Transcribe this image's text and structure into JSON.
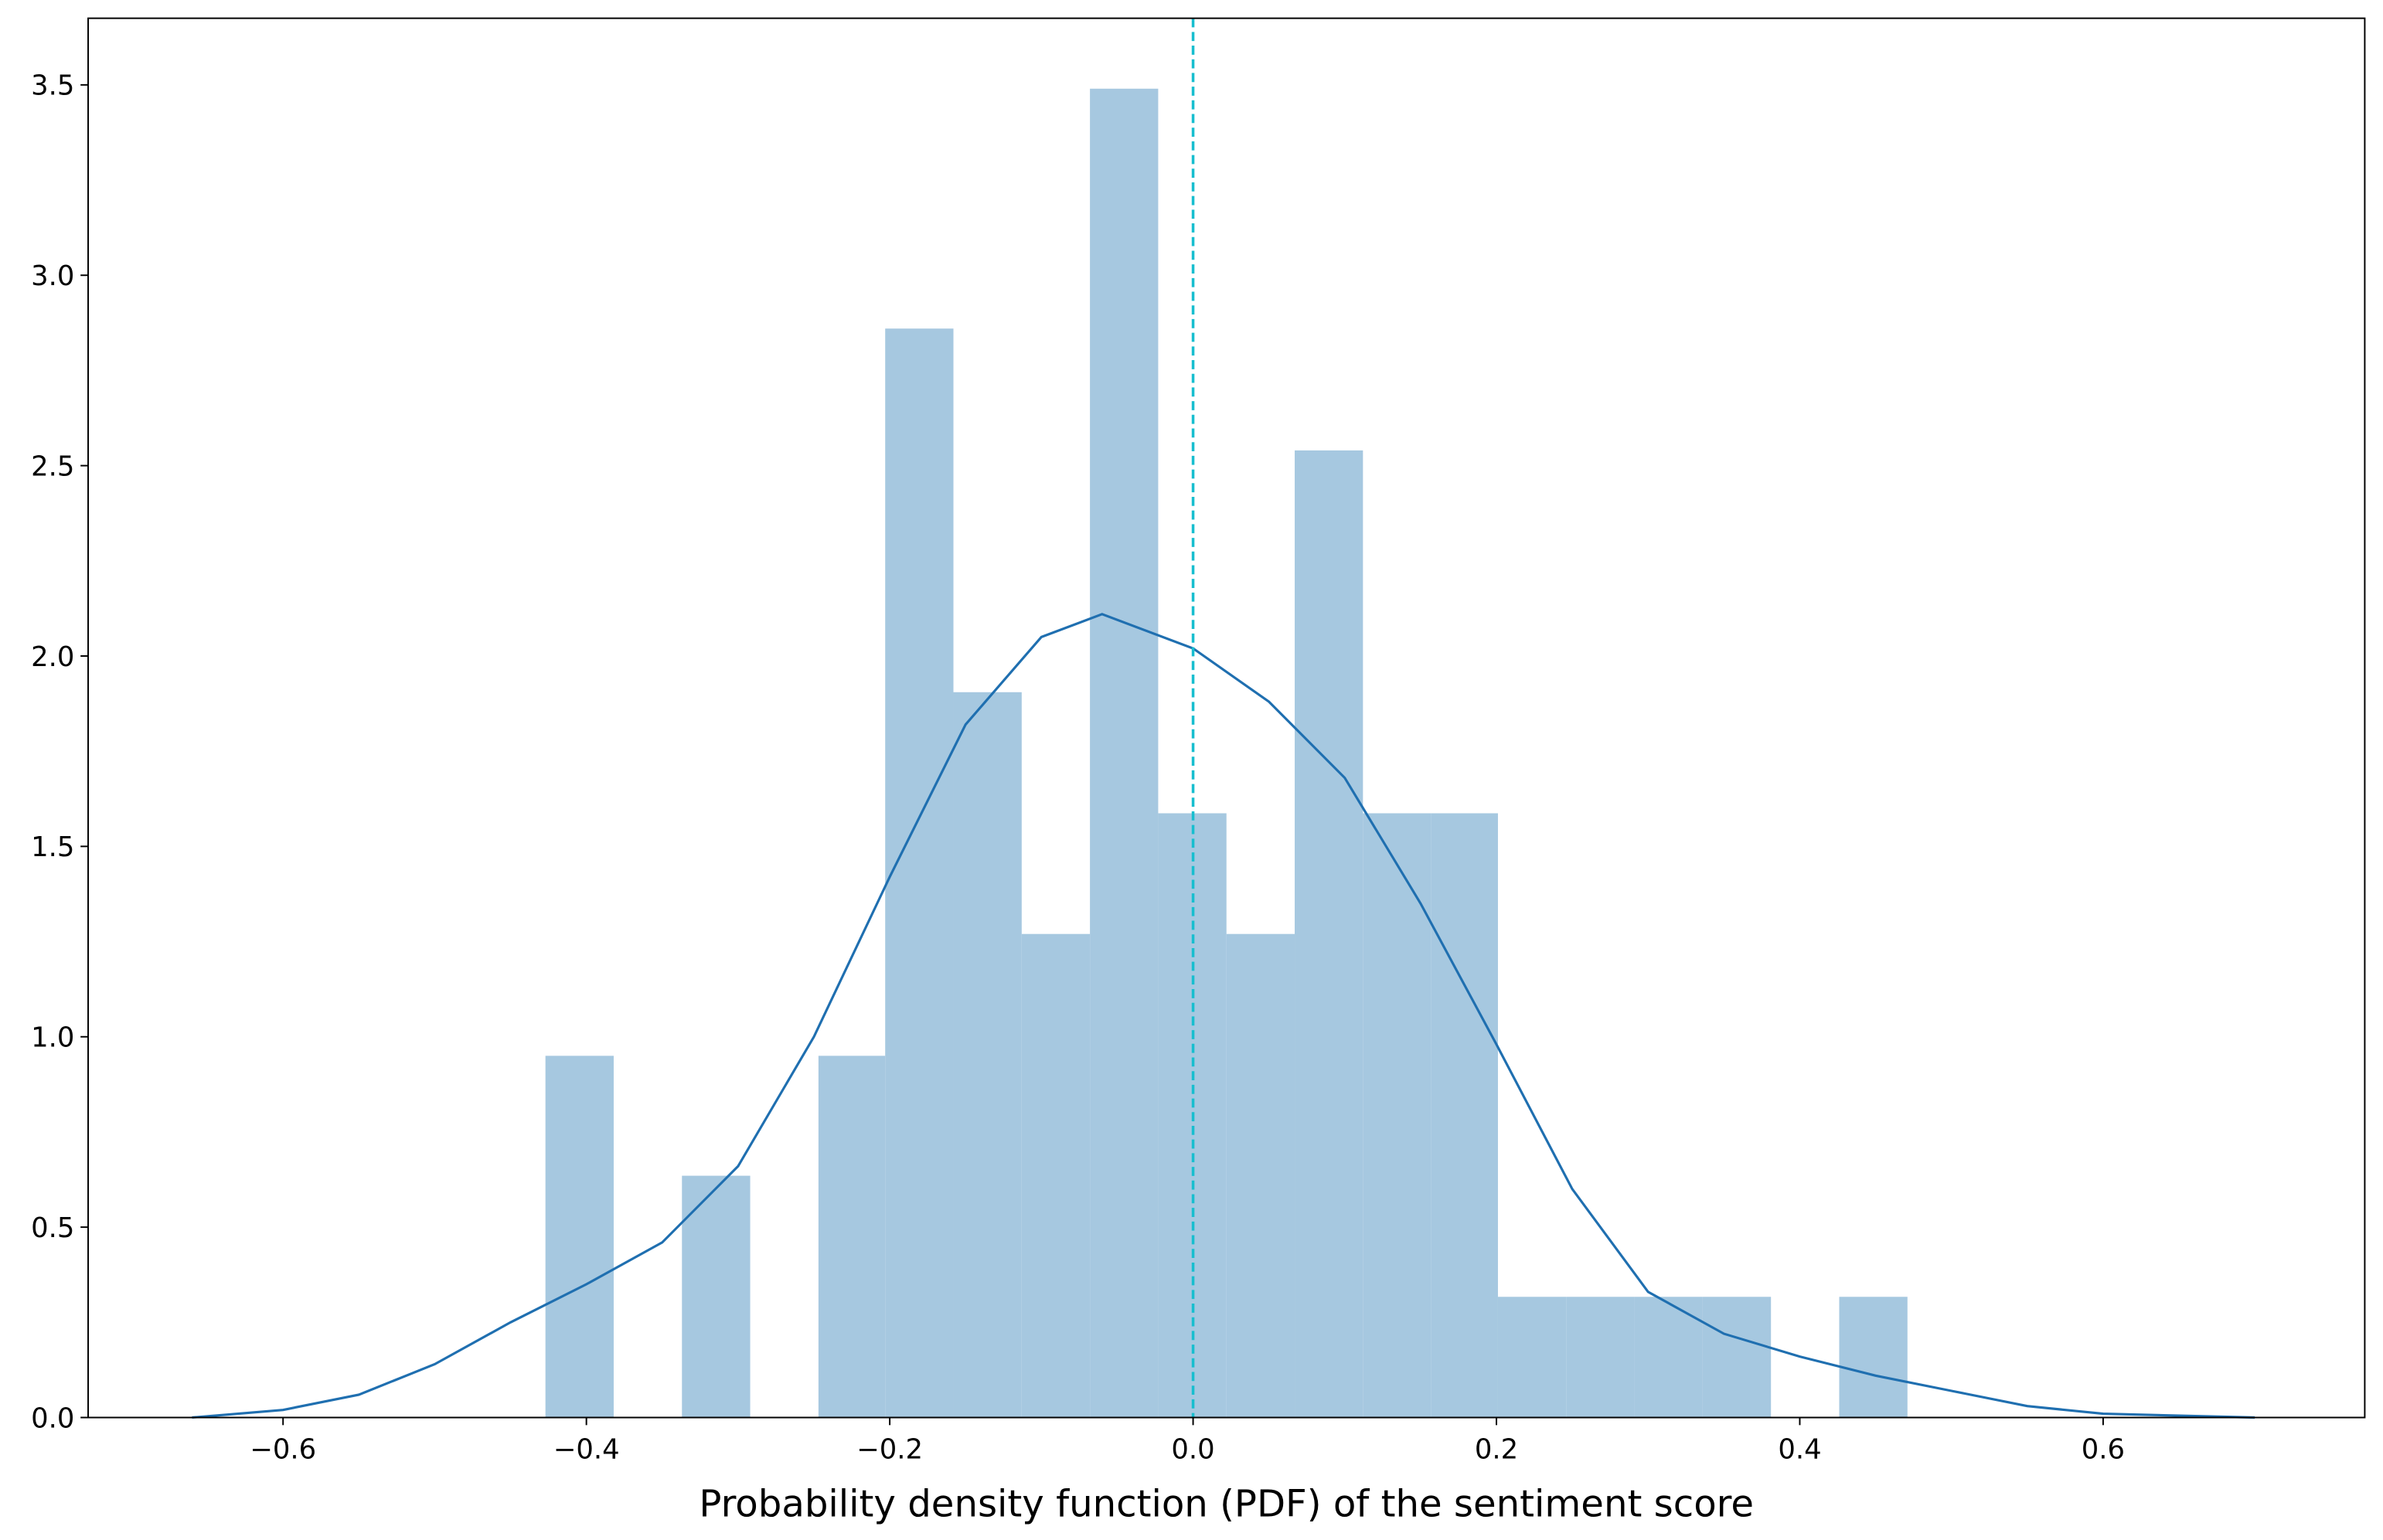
{
  "chart_data": {
    "type": "histogram",
    "xlabel": "Probability density function (PDF) of the sentiment score",
    "bins": [
      -0.427,
      -0.382,
      -0.337,
      -0.292,
      -0.247,
      -0.203,
      -0.158,
      -0.113,
      -0.068,
      -0.023,
      0.022,
      0.067,
      0.112,
      0.157,
      0.201,
      0.246,
      0.291,
      0.336,
      0.381,
      0.426,
      0.471
    ],
    "values": [
      0.95,
      0,
      0.635,
      0,
      0.95,
      2.86,
      1.905,
      1.27,
      3.49,
      1.587,
      1.27,
      2.54,
      1.587,
      1.587,
      0.317,
      0.317,
      0.317,
      0.317,
      0,
      0.317
    ],
    "color": "#a6c8e0",
    "kde": {
      "color": "#1f6fb0",
      "x": [
        -0.66,
        -0.6,
        -0.55,
        -0.5,
        -0.45,
        -0.4,
        -0.35,
        -0.3,
        -0.25,
        -0.2,
        -0.15,
        -0.1,
        -0.06,
        0.0,
        0.05,
        0.1,
        0.15,
        0.2,
        0.25,
        0.3,
        0.35,
        0.4,
        0.45,
        0.5,
        0.55,
        0.6,
        0.7
      ],
      "values": [
        0.0,
        0.02,
        0.06,
        0.14,
        0.25,
        0.35,
        0.46,
        0.66,
        1.0,
        1.42,
        1.82,
        2.05,
        2.11,
        2.02,
        1.88,
        1.68,
        1.35,
        0.98,
        0.6,
        0.33,
        0.22,
        0.16,
        0.11,
        0.07,
        0.03,
        0.01,
        0.0
      ]
    },
    "vline": {
      "x": 0,
      "color": "#17becf",
      "style": "dashed"
    },
    "xlim": [
      -0.7285,
      0.7725
    ],
    "ylim": [
      0,
      3.675
    ],
    "xticks": [
      {
        "value": -0.6,
        "label": "−0.6"
      },
      {
        "value": -0.4,
        "label": "−0.4"
      },
      {
        "value": -0.2,
        "label": "−0.2"
      },
      {
        "value": 0,
        "label": "0.0"
      },
      {
        "value": 0.2,
        "label": "0.2"
      },
      {
        "value": 0.4,
        "label": "0.4"
      },
      {
        "value": 0.6,
        "label": "0.6"
      }
    ],
    "yticks": [
      {
        "value": 0,
        "label": "0.0"
      },
      0.5,
      {
        "value": 1,
        "label": "1.0"
      },
      1.5,
      {
        "value": 2,
        "label": "2.0"
      },
      2.5,
      {
        "value": 3,
        "label": "3.0"
      },
      3.5
    ]
  }
}
